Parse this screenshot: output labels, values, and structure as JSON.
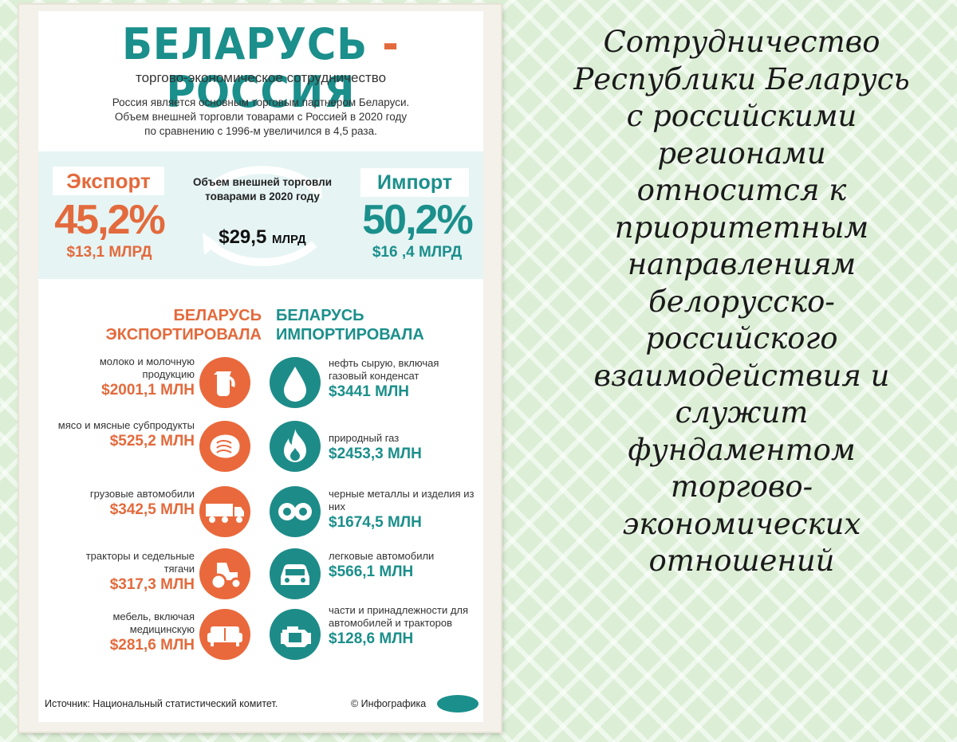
{
  "poster": {
    "title_left": "БЕЛАРУСЬ",
    "title_dash": "-",
    "title_right": "РОССИЯ",
    "subtitle": "торгово-экономическое сотрудничество",
    "intro_lines": [
      "Россия является основным торговым партнером Беларуси.",
      "Объем внешней торговли товарами с Россией в 2020 году",
      "по сравнению с 1996-м увеличился в 4,5 раза."
    ],
    "export": {
      "label": "Экспорт",
      "percent": "45,2%",
      "amount": "$13,1 МЛРД"
    },
    "import": {
      "label": "Импорт",
      "percent": "50,2%",
      "amount": "$16 ,4 МЛРД"
    },
    "volume": {
      "caption": "Объем внешней торговли товарами в 2020 году",
      "value": "$29,5",
      "unit": "МЛРД"
    },
    "exported_heading": [
      "БЕЛАРУСЬ",
      "ЭКСПОРТИРОВАЛА"
    ],
    "imported_heading": [
      "БЕЛАРУСЬ",
      "ИМПОРТИРОВАЛА"
    ],
    "exports": [
      {
        "label": "молоко и молочную продукцию",
        "value": "$2001,1 МЛН",
        "icon": "milk-jug-icon"
      },
      {
        "label": "мясо и мясные субпродукты",
        "value": "$525,2 МЛН",
        "icon": "steak-icon"
      },
      {
        "label": "грузовые автомобили",
        "value": "$342,5 МЛН",
        "icon": "truck-icon"
      },
      {
        "label": "тракторы и седельные тягачи",
        "value": "$317,3 МЛН",
        "icon": "tractor-icon"
      },
      {
        "label": "мебель, включая медицинскую",
        "value": "$281,6 МЛН",
        "icon": "sofa-icon"
      }
    ],
    "imports": [
      {
        "label": "нефть сырую, включая газовый конденсат",
        "value": "$3441 МЛН",
        "icon": "oil-drop-icon"
      },
      {
        "label": "природный газ",
        "value": "$2453,3 МЛН",
        "icon": "gas-flame-icon"
      },
      {
        "label": "черные металлы и изделия из них",
        "value": "$1674,5 МЛН",
        "icon": "metal-pipes-icon"
      },
      {
        "label": "легковые автомобили",
        "value": "$566,1 МЛН",
        "icon": "car-icon"
      },
      {
        "label": "части и принадлежности для автомобилей и тракторов",
        "value": "$128,6 МЛН",
        "icon": "engine-icon"
      }
    ],
    "source": "Источник: Национальный статистический комитет.",
    "credit": "© Инфографика",
    "colors": {
      "orange": "#e36a3c",
      "teal": "#1b8f8b"
    }
  },
  "side_text": [
    "Сотрудничество",
    "Республики Беларусь",
    "с российскими",
    "регионами",
    "относится к",
    "приоритетным",
    "направлениям",
    "белорусско-",
    "российского",
    "взаимодействия и",
    "служит",
    "фундаментом",
    "торгово-",
    "экономических",
    "отношений"
  ]
}
